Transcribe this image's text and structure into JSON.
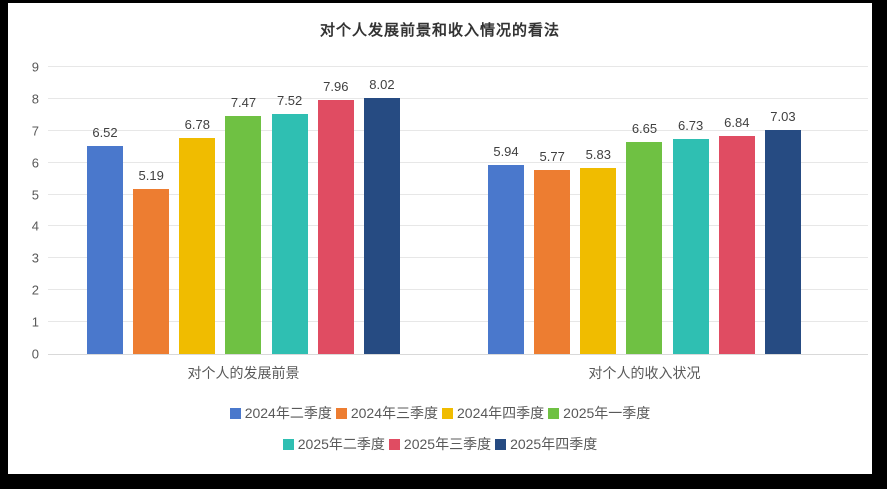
{
  "title": "对个人发展前景和收入情况的看法",
  "chart_data": {
    "type": "bar",
    "title": "对个人发展前景和收入情况的看法",
    "categories": [
      "对个人的发展前景",
      "对个人的收入状况"
    ],
    "series": [
      {
        "name": "2024年二季度",
        "color": "#4A78CC",
        "values": [
          6.52,
          5.94
        ]
      },
      {
        "name": "2024年三季度",
        "color": "#ED7D31",
        "values": [
          5.19,
          5.77
        ]
      },
      {
        "name": "2024年四季度",
        "color": "#F0BC00",
        "values": [
          6.78,
          5.83
        ]
      },
      {
        "name": "2025年一季度",
        "color": "#6FC143",
        "values": [
          7.47,
          6.65
        ]
      },
      {
        "name": "2025年二季度",
        "color": "#2FBFB2",
        "values": [
          7.52,
          6.73
        ]
      },
      {
        "name": "2025年三季度",
        "color": "#E04C62",
        "values": [
          7.96,
          6.84
        ]
      },
      {
        "name": "2025年四季度",
        "color": "#264B82",
        "values": [
          8.02,
          7.03
        ]
      }
    ],
    "ylim": [
      0,
      9
    ],
    "yticks": [
      0,
      1,
      2,
      3,
      4,
      5,
      6,
      7,
      8,
      9
    ],
    "grid": true,
    "value_labels": true,
    "legend_position": "bottom",
    "legend_rows": [
      [
        0,
        1,
        2,
        3
      ],
      [
        4,
        5,
        6
      ]
    ]
  }
}
